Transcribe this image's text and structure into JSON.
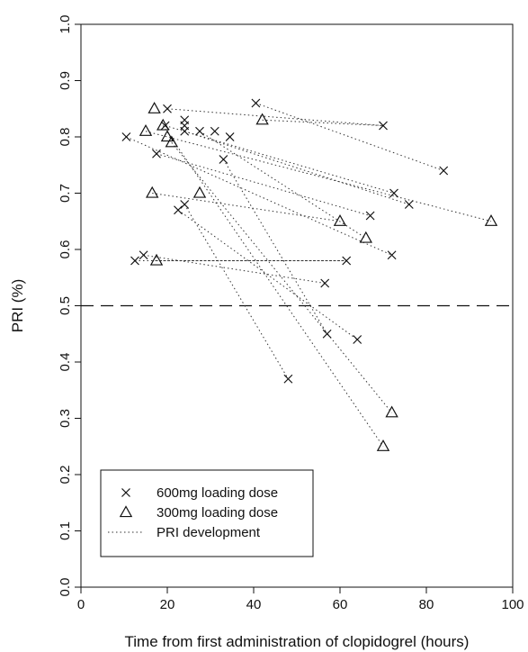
{
  "chart_data": {
    "type": "scatter",
    "xlabel": "Time from first administration of clopidogrel (hours)",
    "ylabel": "PRI (%)",
    "xlim": [
      0,
      100
    ],
    "ylim": [
      0.0,
      1.0
    ],
    "x_ticks": [
      "0",
      "20",
      "40",
      "60",
      "80",
      "100"
    ],
    "y_ticks": [
      "0.0",
      "0.1",
      "0.2",
      "0.3",
      "0.4",
      "0.5",
      "0.6",
      "0.7",
      "0.8",
      "0.9",
      "1.0"
    ],
    "x_tick_values": [
      0,
      20,
      40,
      60,
      80,
      100
    ],
    "y_tick_values": [
      0.0,
      0.1,
      0.2,
      0.3,
      0.4,
      0.5,
      0.6,
      0.7,
      0.8,
      0.9,
      1.0
    ],
    "reference_line": {
      "y": 0.5,
      "style": "dashed"
    },
    "grid": false,
    "legend_position": "bottom-left",
    "legend": [
      {
        "marker": "cross",
        "label": "600mg loading dose"
      },
      {
        "marker": "triangle",
        "label": "300mg loading dose"
      },
      {
        "marker": "dotted-line",
        "label": "PRI development"
      }
    ],
    "series": [
      {
        "marker": "cross",
        "label": "600mg loading dose",
        "points": [
          [
            10.5,
            0.8
          ],
          [
            12.5,
            0.58
          ],
          [
            14.5,
            0.59
          ],
          [
            17.5,
            0.77
          ],
          [
            19.5,
            0.82
          ],
          [
            20,
            0.85
          ],
          [
            22.5,
            0.67
          ],
          [
            24,
            0.68
          ],
          [
            24,
            0.81
          ],
          [
            24,
            0.82
          ],
          [
            24,
            0.83
          ],
          [
            27.5,
            0.81
          ],
          [
            31,
            0.81
          ],
          [
            33,
            0.76
          ],
          [
            34.5,
            0.8
          ],
          [
            40.5,
            0.86
          ],
          [
            48,
            0.37
          ],
          [
            56.5,
            0.54
          ],
          [
            57,
            0.45
          ],
          [
            61.5,
            0.58
          ],
          [
            64,
            0.44
          ],
          [
            67,
            0.66
          ],
          [
            70,
            0.82
          ],
          [
            72,
            0.59
          ],
          [
            72.5,
            0.7
          ],
          [
            76,
            0.68
          ],
          [
            84,
            0.74
          ]
        ]
      },
      {
        "marker": "triangle",
        "label": "300mg loading dose",
        "points": [
          [
            15,
            0.81
          ],
          [
            16.5,
            0.7
          ],
          [
            17,
            0.85
          ],
          [
            17.5,
            0.58
          ],
          [
            19,
            0.82
          ],
          [
            20,
            0.8
          ],
          [
            21,
            0.79
          ],
          [
            27.5,
            0.7
          ],
          [
            42,
            0.83
          ],
          [
            60,
            0.65
          ],
          [
            66,
            0.62
          ],
          [
            70,
            0.25
          ],
          [
            72,
            0.31
          ],
          [
            95,
            0.65
          ]
        ]
      }
    ],
    "trajectories": [
      [
        [
          10.5,
          0.8
        ],
        [
          72,
          0.59
        ]
      ],
      [
        [
          12.5,
          0.58
        ],
        [
          61.5,
          0.58
        ]
      ],
      [
        [
          14.5,
          0.59
        ],
        [
          56.5,
          0.54
        ]
      ],
      [
        [
          17.5,
          0.77
        ],
        [
          67,
          0.66
        ]
      ],
      [
        [
          19.5,
          0.82
        ],
        [
          72.5,
          0.7
        ]
      ],
      [
        [
          20,
          0.85
        ],
        [
          70,
          0.82
        ]
      ],
      [
        [
          22.5,
          0.67
        ],
        [
          64,
          0.44
        ]
      ],
      [
        [
          24,
          0.68
        ],
        [
          48,
          0.37
        ]
      ],
      [
        [
          24,
          0.81
        ],
        [
          76,
          0.68
        ]
      ],
      [
        [
          27.5,
          0.81
        ],
        [
          66,
          0.62
        ]
      ],
      [
        [
          33,
          0.76
        ],
        [
          57,
          0.45
        ]
      ],
      [
        [
          40.5,
          0.86
        ],
        [
          84,
          0.74
        ]
      ],
      [
        [
          15,
          0.81
        ],
        [
          95,
          0.65
        ]
      ],
      [
        [
          16.5,
          0.7
        ],
        [
          60,
          0.65
        ]
      ],
      [
        [
          19,
          0.82
        ],
        [
          70,
          0.25
        ]
      ],
      [
        [
          21,
          0.79
        ],
        [
          72,
          0.31
        ]
      ],
      [
        [
          42,
          0.83
        ],
        [
          70,
          0.82
        ]
      ],
      [
        [
          17.5,
          0.58
        ],
        [
          61.5,
          0.58
        ]
      ]
    ]
  }
}
